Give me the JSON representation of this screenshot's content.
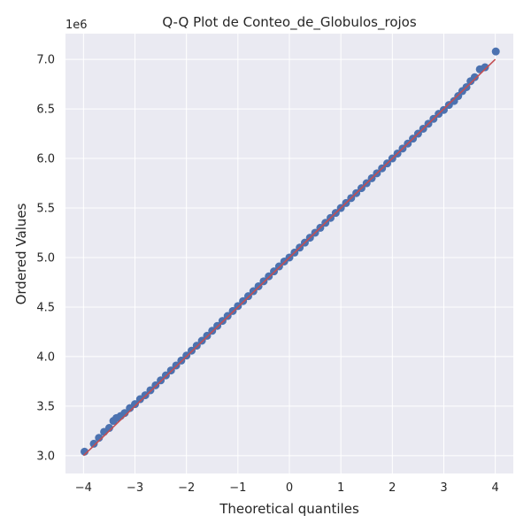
{
  "chart_data": {
    "type": "scatter",
    "title": "Q-Q Plot de Conteo_de_Globulos_rojos",
    "xlabel": "Theoretical quantiles",
    "ylabel": "Ordered Values",
    "y_offset_label": "1e6",
    "xlim": [
      -4.35,
      4.35
    ],
    "ylim": [
      2.82,
      7.26
    ],
    "x_ticks": [
      -4,
      -3,
      -2,
      -1,
      0,
      1,
      2,
      3,
      4
    ],
    "x_tick_labels": [
      "−4",
      "−3",
      "−2",
      "−1",
      "0",
      "1",
      "2",
      "3",
      "4"
    ],
    "y_ticks": [
      3.0,
      3.5,
      4.0,
      4.5,
      5.0,
      5.5,
      6.0,
      6.5,
      7.0
    ],
    "y_tick_labels": [
      "3.0",
      "3.5",
      "4.0",
      "4.5",
      "5.0",
      "5.5",
      "6.0",
      "6.5",
      "7.0"
    ],
    "grid": true,
    "colors": {
      "background": "#eaeaf2",
      "points": "#4c72b0",
      "fit_line": "#c44e52"
    },
    "fit_line": {
      "x": [
        -4.0,
        4.0
      ],
      "y": [
        3.0,
        7.0
      ]
    },
    "series": [
      {
        "x": [
          -3.98,
          -3.8,
          -3.7,
          -3.6,
          -3.5,
          -3.42,
          -3.36,
          -3.28,
          -3.2,
          -3.1,
          -3.0,
          -2.9,
          -2.8,
          -2.7,
          -2.6,
          -2.5,
          -2.4,
          -2.3,
          -2.2,
          -2.1,
          -2.0,
          -1.9,
          -1.8,
          -1.7,
          -1.6,
          -1.5,
          -1.4,
          -1.3,
          -1.2,
          -1.1,
          -1.0,
          -0.9,
          -0.8,
          -0.7,
          -0.6,
          -0.5,
          -0.4,
          -0.3,
          -0.2,
          -0.1,
          0.0,
          0.1,
          0.2,
          0.3,
          0.4,
          0.5,
          0.6,
          0.7,
          0.8,
          0.9,
          1.0,
          1.1,
          1.2,
          1.3,
          1.4,
          1.5,
          1.6,
          1.7,
          1.8,
          1.9,
          2.0,
          2.1,
          2.2,
          2.3,
          2.4,
          2.5,
          2.6,
          2.7,
          2.8,
          2.9,
          3.0,
          3.1,
          3.2,
          3.28,
          3.36,
          3.44,
          3.52,
          3.6,
          3.7,
          3.8,
          4.01
        ],
        "y": [
          3.04,
          3.12,
          3.18,
          3.24,
          3.28,
          3.35,
          3.38,
          3.4,
          3.43,
          3.48,
          3.52,
          3.57,
          3.61,
          3.66,
          3.71,
          3.76,
          3.81,
          3.86,
          3.91,
          3.96,
          4.01,
          4.06,
          4.11,
          4.16,
          4.21,
          4.26,
          4.31,
          4.36,
          4.41,
          4.46,
          4.51,
          4.56,
          4.61,
          4.66,
          4.71,
          4.76,
          4.81,
          4.86,
          4.91,
          4.96,
          5.0,
          5.05,
          5.1,
          5.15,
          5.2,
          5.25,
          5.3,
          5.35,
          5.4,
          5.45,
          5.5,
          5.55,
          5.6,
          5.65,
          5.7,
          5.75,
          5.8,
          5.85,
          5.9,
          5.95,
          6.0,
          6.05,
          6.1,
          6.15,
          6.2,
          6.25,
          6.3,
          6.35,
          6.4,
          6.45,
          6.49,
          6.54,
          6.58,
          6.63,
          6.68,
          6.72,
          6.78,
          6.82,
          6.9,
          6.92,
          7.08
        ]
      }
    ]
  }
}
